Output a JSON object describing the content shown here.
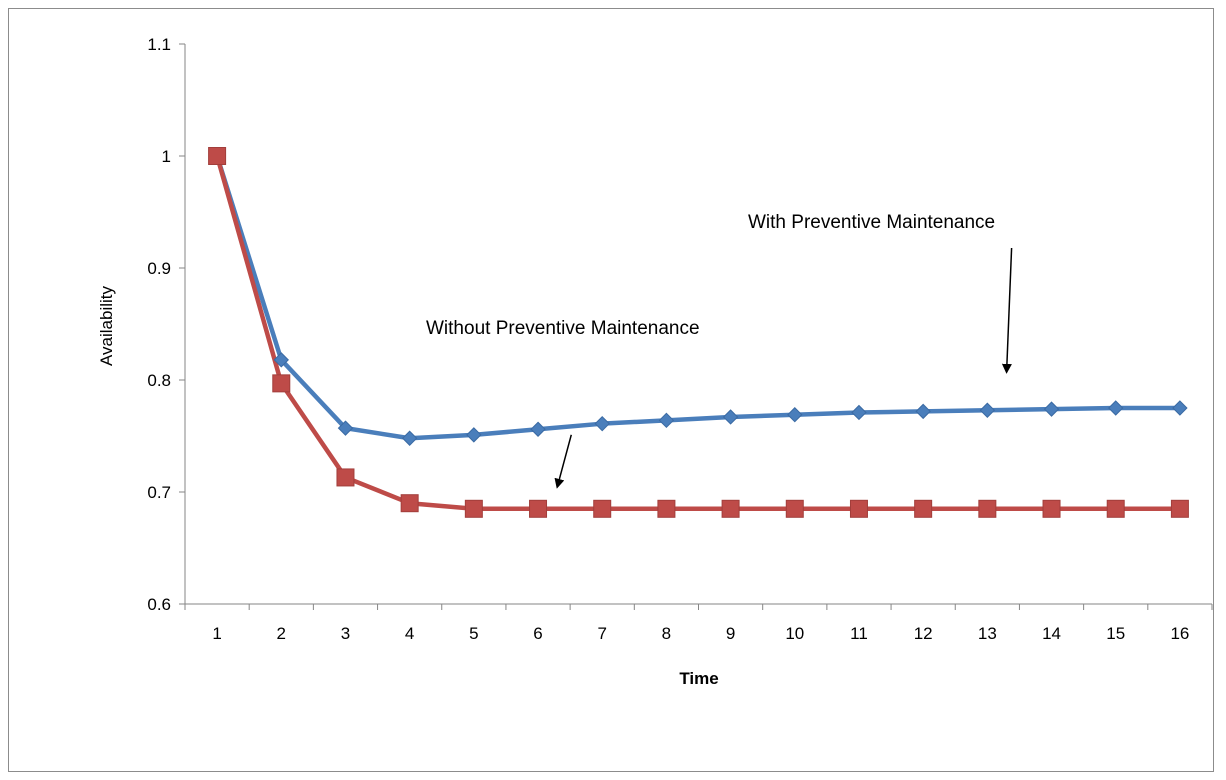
{
  "chart_data": {
    "type": "line",
    "title": "",
    "xlabel": "Time",
    "ylabel": "Availability",
    "categories": [
      "1",
      "2",
      "3",
      "4",
      "5",
      "6",
      "7",
      "8",
      "9",
      "10",
      "11",
      "12",
      "13",
      "14",
      "15",
      "16"
    ],
    "ylim": [
      0.6,
      1.1
    ],
    "yticks": [
      "0.6",
      "0.7",
      "0.8",
      "0.9",
      "1",
      "1.1"
    ],
    "grid": false,
    "legend": "none",
    "series": [
      {
        "key": "with_pm",
        "color": "#4a7ebb",
        "marker": "diamond",
        "values": [
          1.0,
          0.818,
          0.757,
          0.748,
          0.751,
          0.756,
          0.761,
          0.764,
          0.767,
          0.769,
          0.771,
          0.772,
          0.773,
          0.774,
          0.775,
          0.775
        ]
      },
      {
        "key": "without_pm",
        "color": "#be4b48",
        "marker": "square",
        "values": [
          1.0,
          0.797,
          0.713,
          0.69,
          0.685,
          0.685,
          0.685,
          0.685,
          0.685,
          0.685,
          0.685,
          0.685,
          0.685,
          0.685,
          0.685,
          0.685
        ]
      }
    ],
    "annotations": [
      {
        "key": "with_label",
        "text": "With Preventive Maintenance",
        "target_series": "with_pm",
        "target_x": 13.3
      },
      {
        "key": "without_label",
        "text": "Without Preventive Maintenance",
        "target_series": "without_pm",
        "target_x": 6.3
      }
    ]
  }
}
